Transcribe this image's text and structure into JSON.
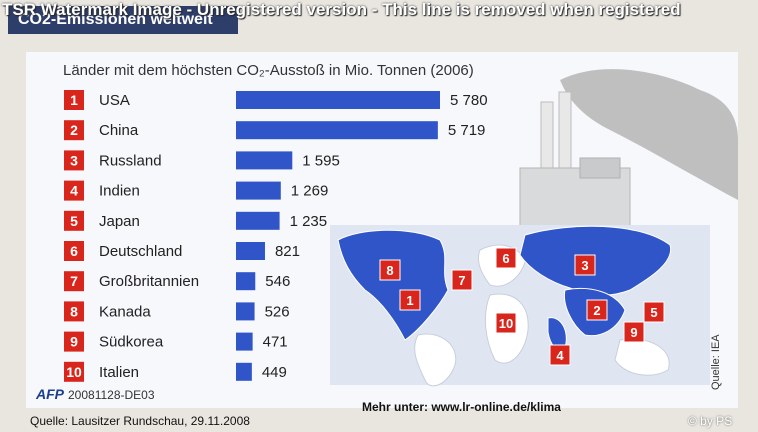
{
  "watermark": "TSR Watermark Image - Unregistered version - This line is removed when registered",
  "header_title": "CO2-Emissionen weltweit",
  "chart_data": {
    "type": "bar",
    "title": "Länder mit dem höchsten CO₂-Ausstoß in Mio. Tonnen (2006)",
    "categories": [
      "USA",
      "China",
      "Russland",
      "Indien",
      "Japan",
      "Deutschland",
      "Großbritannien",
      "Kanada",
      "Südkorea",
      "Italien"
    ],
    "ranks": [
      "1",
      "2",
      "3",
      "4",
      "5",
      "6",
      "7",
      "8",
      "9",
      "10"
    ],
    "values": [
      5780,
      5719,
      1595,
      1269,
      1235,
      821,
      546,
      526,
      471,
      449
    ],
    "value_labels": [
      "5 780",
      "5 719",
      "1 595",
      "1 269",
      "1 235",
      "821",
      "546",
      "526",
      "471",
      "449"
    ],
    "bar_color": "#2f55c8",
    "rank_color": "#d9261c"
  },
  "map": {
    "land_color": "#ffffff",
    "highlight_color": "#2f55c8"
  },
  "footer": {
    "afp_logo": "AFP",
    "afp_code": "20081128-DE03",
    "source_credit": "Quelle: IEA",
    "newspaper": "Quelle: Lausitzer Rundschau, 29.11.2008",
    "more": "Mehr unter: www.lr-online.de/klima",
    "copyright": "© by PS"
  }
}
